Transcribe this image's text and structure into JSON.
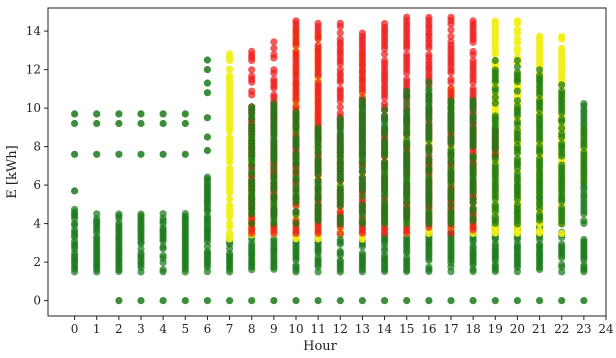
{
  "chart_data": {
    "type": "scatter",
    "title": "",
    "xlabel": "Hour",
    "ylabel": "E [kWh]",
    "xlim": [
      -1.2,
      24
    ],
    "ylim": [
      -0.8,
      15.2
    ],
    "xticks": [
      "0",
      "1",
      "2",
      "3",
      "4",
      "5",
      "6",
      "7",
      "8",
      "9",
      "10",
      "11",
      "12",
      "13",
      "14",
      "15",
      "16",
      "17",
      "18",
      "19",
      "20",
      "21",
      "22",
      "23",
      "24"
    ],
    "yticks": [
      "0",
      "2",
      "4",
      "6",
      "8",
      "10",
      "12",
      "14"
    ],
    "grid": false,
    "legend": "none",
    "colors": {
      "green": "#1a7a1a",
      "red": "#ee1c1c",
      "yellow": "#f2ee1a"
    },
    "series": [
      {
        "color": "green",
        "description": "per-hour clusters [x, y_min, y_max] plus isolated levels",
        "bands": [
          [
            0,
            1.5,
            4.8
          ],
          [
            1,
            1.5,
            4.6
          ],
          [
            2,
            1.5,
            4.6
          ],
          [
            3,
            1.5,
            4.6
          ],
          [
            4,
            1.5,
            4.6
          ],
          [
            5,
            1.5,
            4.6
          ],
          [
            6,
            1.5,
            6.5
          ],
          [
            7,
            1.5,
            3.4
          ],
          [
            8,
            1.5,
            3.6
          ],
          [
            9,
            1.5,
            3.4
          ],
          [
            10,
            1.5,
            3.6
          ],
          [
            11,
            1.5,
            3.4
          ],
          [
            12,
            1.5,
            3.6
          ],
          [
            13,
            1.5,
            3.4
          ],
          [
            14,
            1.5,
            3.6
          ],
          [
            15,
            1.5,
            3.4
          ],
          [
            16,
            1.5,
            3.6
          ],
          [
            17,
            1.5,
            3.8
          ],
          [
            18,
            1.5,
            3.6
          ],
          [
            19,
            1.5,
            5.2
          ],
          [
            20,
            1.5,
            4.4
          ],
          [
            21,
            1.5,
            4.2
          ],
          [
            22,
            1.5,
            3.6
          ],
          [
            23,
            1.5,
            3.2
          ]
        ],
        "levels": [
          [
            0,
            7.6
          ],
          [
            0,
            9.2
          ],
          [
            0,
            9.7
          ],
          [
            0,
            5.7
          ],
          [
            1,
            7.6
          ],
          [
            1,
            9.2
          ],
          [
            1,
            9.7
          ],
          [
            2,
            7.6
          ],
          [
            2,
            9.2
          ],
          [
            2,
            9.7
          ],
          [
            3,
            7.6
          ],
          [
            3,
            9.2
          ],
          [
            3,
            9.7
          ],
          [
            4,
            7.6
          ],
          [
            4,
            9.2
          ],
          [
            4,
            9.7
          ],
          [
            5,
            7.6
          ],
          [
            5,
            9.2
          ],
          [
            5,
            9.7
          ],
          [
            2,
            0
          ],
          [
            3,
            0
          ],
          [
            4,
            0
          ],
          [
            5,
            0
          ],
          [
            6,
            0
          ],
          [
            7,
            0
          ],
          [
            8,
            0
          ],
          [
            9,
            0
          ],
          [
            10,
            0
          ],
          [
            11,
            0
          ],
          [
            12,
            0
          ],
          [
            13,
            0
          ],
          [
            14,
            0
          ],
          [
            15,
            0
          ],
          [
            16,
            0
          ],
          [
            17,
            0
          ],
          [
            18,
            0
          ],
          [
            19,
            0
          ],
          [
            20,
            0
          ],
          [
            21,
            0
          ],
          [
            22,
            0
          ],
          [
            23,
            0
          ],
          [
            6,
            9.5
          ],
          [
            6,
            10.8
          ],
          [
            6,
            11.3
          ],
          [
            6,
            12.0
          ],
          [
            6,
            12.5
          ],
          [
            6,
            7.8
          ],
          [
            6,
            8.5
          ]
        ]
      },
      {
        "color": "yellow",
        "description": "per-hour ranges [x, y_min, y_max]",
        "bands": [
          [
            7,
            3.2,
            12.8
          ],
          [
            8,
            3.4,
            9.0
          ],
          [
            9,
            3.5,
            8.0
          ],
          [
            10,
            3.2,
            14.2
          ],
          [
            11,
            3.2,
            13.8
          ],
          [
            12,
            3.5,
            8.0
          ],
          [
            13,
            3.2,
            12.8
          ],
          [
            14,
            3.5,
            8.0
          ],
          [
            15,
            3.5,
            9.0
          ],
          [
            16,
            3.5,
            9.0
          ],
          [
            17,
            3.8,
            11.0
          ],
          [
            18,
            3.5,
            9.0
          ],
          [
            19,
            3.5,
            14.6
          ],
          [
            20,
            3.5,
            14.8
          ],
          [
            21,
            3.5,
            14.0
          ],
          [
            22,
            3.5,
            14.0
          ],
          [
            23,
            6.0,
            9.0
          ]
        ]
      },
      {
        "color": "red",
        "description": "per-hour ranges [x, y_min, y_max]",
        "bands": [
          [
            8,
            3.5,
            13.0
          ],
          [
            9,
            3.5,
            13.6
          ],
          [
            10,
            3.5,
            14.6
          ],
          [
            11,
            3.5,
            14.4
          ],
          [
            12,
            3.5,
            14.4
          ],
          [
            13,
            3.5,
            13.9
          ],
          [
            14,
            3.5,
            14.4
          ],
          [
            15,
            3.5,
            14.7
          ],
          [
            16,
            3.5,
            14.7
          ],
          [
            17,
            3.5,
            14.7
          ],
          [
            18,
            3.5,
            14.6
          ],
          [
            19,
            7.5,
            9.0
          ]
        ]
      },
      {
        "color": "green",
        "description": "upper green scatter [x, y_min, y_max]",
        "bands": [
          [
            8,
            4.0,
            10.2
          ],
          [
            9,
            4.0,
            10.5
          ],
          [
            10,
            4.0,
            9.8
          ],
          [
            11,
            4.0,
            9.0
          ],
          [
            12,
            4.0,
            9.5
          ],
          [
            13,
            4.0,
            10.5
          ],
          [
            14,
            4.0,
            10.0
          ],
          [
            15,
            4.0,
            11.0
          ],
          [
            16,
            4.0,
            11.5
          ],
          [
            17,
            4.0,
            10.5
          ],
          [
            18,
            4.0,
            10.5
          ],
          [
            19,
            4.0,
            12.5
          ],
          [
            20,
            4.0,
            12.5
          ],
          [
            21,
            4.0,
            12.0
          ],
          [
            22,
            4.0,
            11.2
          ],
          [
            23,
            4.0,
            10.5
          ]
        ]
      }
    ]
  }
}
